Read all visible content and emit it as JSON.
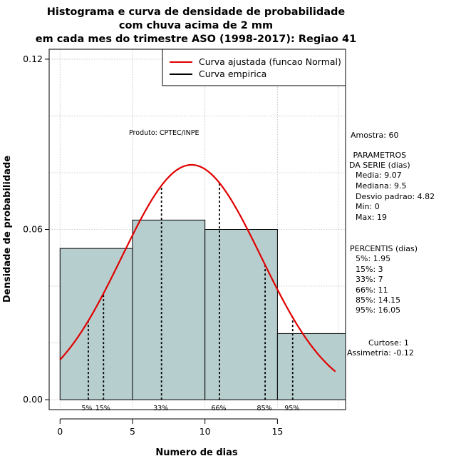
{
  "chart_data": {
    "type": "histogram",
    "title_lines": [
      "Histograma e curva de densidade de probabilidade",
      "com chuva acima de 2 mm",
      "em cada mes do trimestre ASO (1998-2017): Regiao 41"
    ],
    "xlabel": "Numero de dias",
    "ylabel": "Densidade de probabilidade",
    "xlim": [
      -0.75,
      19.7
    ],
    "ylim": [
      -0.0035,
      0.1235
    ],
    "x_ticks": [
      "0",
      "5",
      "10",
      "15"
    ],
    "y_ticks": [
      "0.00",
      "0.06",
      "0.12"
    ],
    "bins": [
      {
        "x0": 0,
        "x1": 5,
        "density": 0.0533
      },
      {
        "x0": 5,
        "x1": 10,
        "density": 0.0633
      },
      {
        "x0": 10,
        "x1": 15,
        "density": 0.06
      },
      {
        "x0": 15,
        "x1": 19.7,
        "density": 0.0233
      }
    ],
    "normal_curve": {
      "mean": 9.07,
      "sd": 4.82,
      "x_from": 0,
      "x_to": 19
    },
    "percentile_markers": [
      {
        "x": 1.95,
        "label": "5%"
      },
      {
        "x": 3,
        "label": "15%"
      },
      {
        "x": 7,
        "label": "33%"
      },
      {
        "x": 11,
        "label": "66%"
      },
      {
        "x": 14.15,
        "label": "85%"
      },
      {
        "x": 16.05,
        "label": "95%"
      }
    ],
    "legend": [
      {
        "label": "Curva ajustada (funcao Normal)",
        "color": "#e00000"
      },
      {
        "label": "Curva empirica",
        "color": "#000000"
      }
    ],
    "product_label": "Produto: CPTEC/INPE",
    "annotations": {
      "amostra": "Amostra: 60",
      "params_header": [
        " PARAMETROS",
        "DA SERIE (dias)"
      ],
      "params": [
        "Media: 9.07",
        "Mediana: 9.5",
        "Desvio padrao: 4.82",
        "Min: 0",
        "Max: 19"
      ],
      "perc_header": "PERCENTIS (dias)",
      "percentis": [
        "5%: 1.95",
        "15%: 3",
        "33%: 7",
        "66%: 11",
        "85%: 14.15",
        "95%: 16.05"
      ],
      "curtose": "Curtose: 1",
      "assimetria": "Assimetria: -0.12"
    },
    "colors": {
      "bar_fill": "#b7cece",
      "normal_curve": "#e00000",
      "grid": "#bfbfbf"
    }
  }
}
